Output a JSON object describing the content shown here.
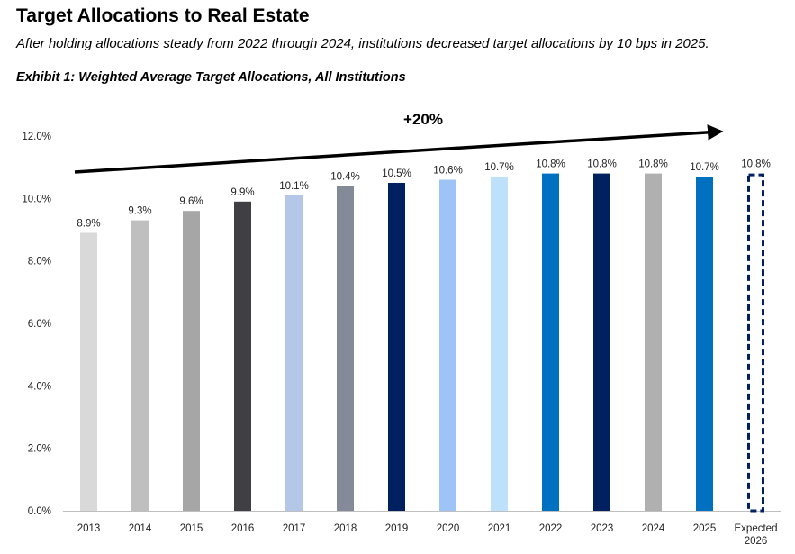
{
  "header": {
    "title": "Target Allocations to Real Estate",
    "subtitle": "After holding allocations steady from 2022 through 2024, institutions decreased target allocations by 10 bps in 2025.",
    "exhibit": "Exhibit 1: Weighted Average Target Allocations, All Institutions"
  },
  "chart_data": {
    "type": "bar",
    "title": "Exhibit 1: Weighted Average Target Allocations, All Institutions",
    "xlabel": "",
    "ylabel": "",
    "ylim": [
      0,
      12
    ],
    "ytick_step": 2,
    "ytick_labels": [
      "0.0%",
      "2.0%",
      "4.0%",
      "6.0%",
      "8.0%",
      "10.0%",
      "12.0%"
    ],
    "categories": [
      "2013",
      "2014",
      "2015",
      "2016",
      "2017",
      "2018",
      "2019",
      "2020",
      "2021",
      "2022",
      "2023",
      "2024",
      "2025",
      "Expected 2026"
    ],
    "values": [
      8.9,
      9.3,
      9.6,
      9.9,
      10.1,
      10.4,
      10.5,
      10.6,
      10.7,
      10.8,
      10.8,
      10.8,
      10.7,
      10.8
    ],
    "value_labels": [
      "8.9%",
      "9.3%",
      "9.6%",
      "9.9%",
      "10.1%",
      "10.4%",
      "10.5%",
      "10.6%",
      "10.7%",
      "10.8%",
      "10.8%",
      "10.8%",
      "10.7%",
      "10.8%"
    ],
    "bar_colors": [
      "#d9d9d9",
      "#bfbfbf",
      "#a6a6a6",
      "#404044",
      "#b4c7e7",
      "#858a99",
      "#002060",
      "#9dc3f7",
      "#bde0fb",
      "#0070c0",
      "#002060",
      "#b0b0b0",
      "#0070c0",
      "#ffffff"
    ],
    "projected_outline_color": "#002060",
    "annotation": "+20%",
    "grid": false
  }
}
